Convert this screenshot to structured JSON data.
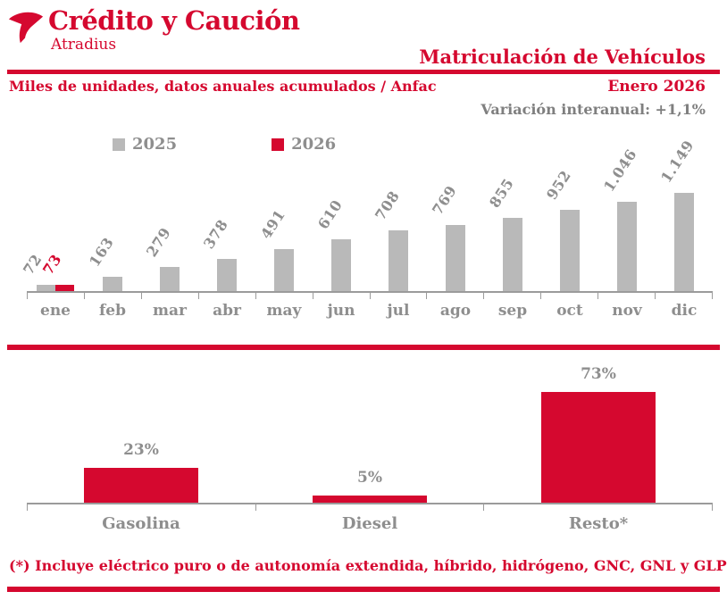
{
  "brand": {
    "name": "Crédito y Caución",
    "subname": "Atradius"
  },
  "header": {
    "title": "Matriculación de Vehículos",
    "subtitle_left": "Miles de unidades, datos anuales acumulados / Anfac",
    "period": "Enero 2026",
    "variation": "Variación interanual: +1,1%"
  },
  "colors": {
    "accent_red": "#d5082f",
    "bar_gray": "#b9b9b9",
    "text_gray": "#8e8e8e",
    "axis_gray": "#9b9b9b"
  },
  "legend": [
    {
      "label": "2025",
      "color": "#b9b9b9"
    },
    {
      "label": "2026",
      "color": "#d5082f"
    }
  ],
  "chart_data": [
    {
      "type": "bar",
      "title": "Matriculación de vehículos, acumulado mensual (miles de unidades)",
      "categories": [
        "ene",
        "feb",
        "mar",
        "abr",
        "may",
        "jun",
        "jul",
        "ago",
        "sep",
        "oct",
        "nov",
        "dic"
      ],
      "series": [
        {
          "name": "2025",
          "color": "#b9b9b9",
          "values": [
            72,
            163,
            279,
            378,
            491,
            610,
            708,
            769,
            855,
            952,
            1046,
            1149
          ],
          "labels": [
            "72",
            "163",
            "279",
            "378",
            "491",
            "610",
            "708",
            "769",
            "855",
            "952",
            "1.046",
            "1.149"
          ]
        },
        {
          "name": "2026",
          "color": "#d5082f",
          "values": [
            73,
            null,
            null,
            null,
            null,
            null,
            null,
            null,
            null,
            null,
            null,
            null
          ],
          "labels": [
            "73",
            null,
            null,
            null,
            null,
            null,
            null,
            null,
            null,
            null,
            null,
            null
          ]
        }
      ],
      "ylim": [
        0,
        1200
      ],
      "grid": false,
      "legend_position": "top",
      "value_labels_rotated": true
    },
    {
      "type": "bar",
      "title": "Matriculaciones por tipo de combustible (% del total)",
      "categories": [
        "Gasolina",
        "Diesel",
        "Resto*"
      ],
      "values": [
        23,
        5,
        73
      ],
      "labels": [
        "23%",
        "5%",
        "73%"
      ],
      "color": "#d5082f",
      "ylim": [
        0,
        80
      ],
      "grid": false
    }
  ],
  "footer": {
    "note": "(*) Incluye eléctrico puro o de autonomía extendida, híbrido, hidrógeno, GNC, GNL y GLP"
  }
}
